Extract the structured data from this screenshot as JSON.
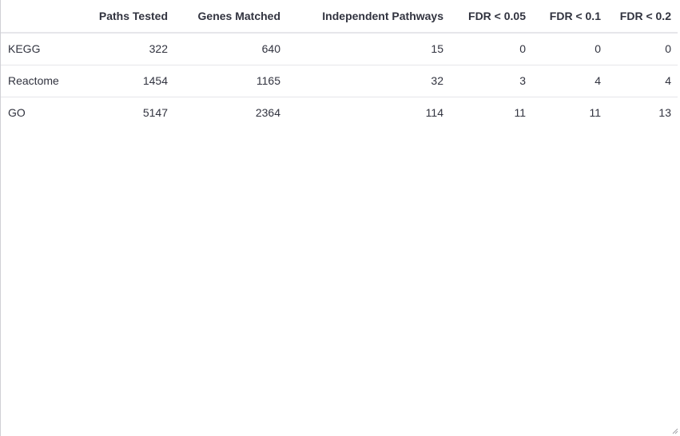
{
  "table": {
    "columns": [
      "",
      "Paths Tested",
      "Genes Matched",
      "Independent Pathways",
      "FDR < 0.05",
      "FDR < 0.1",
      "FDR < 0.2"
    ],
    "rows": [
      [
        "KEGG",
        "322",
        "640",
        "15",
        "0",
        "0",
        "0"
      ],
      [
        "Reactome",
        "1454",
        "1165",
        "32",
        "3",
        "4",
        "4"
      ],
      [
        "GO",
        "5147",
        "2364",
        "114",
        "11",
        "11",
        "13"
      ]
    ]
  },
  "colors": {
    "text": "#31333f",
    "border": "#e6e6ea"
  },
  "icons": {
    "resize_handle": "resize-grip-icon"
  }
}
